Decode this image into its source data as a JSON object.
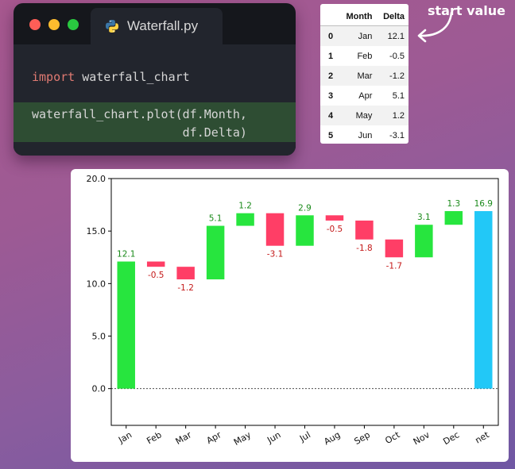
{
  "window": {
    "filename": "Waterfall.py",
    "dots": [
      {
        "name": "close",
        "color": "#fe5e57"
      },
      {
        "name": "minimize",
        "color": "#febc2e"
      },
      {
        "name": "maximize",
        "color": "#29c840"
      }
    ],
    "code": {
      "keyword": "import",
      "module": " waterfall_chart",
      "call_line1": "waterfall_chart.plot(df.Month,",
      "call_line2": "                     df.Delta)"
    }
  },
  "table": {
    "columns": [
      "",
      "Month",
      "Delta"
    ],
    "rows": [
      [
        "0",
        "Jan",
        "12.1"
      ],
      [
        "1",
        "Feb",
        "-0.5"
      ],
      [
        "2",
        "Mar",
        "-1.2"
      ],
      [
        "3",
        "Apr",
        "5.1"
      ],
      [
        "4",
        "May",
        "1.2"
      ],
      [
        "5",
        "Jun",
        "-3.1"
      ]
    ]
  },
  "annotation": "start value",
  "chart_data": {
    "type": "bar",
    "subtype": "waterfall",
    "categories": [
      "Jan",
      "Feb",
      "Mar",
      "Apr",
      "May",
      "Jun",
      "Jul",
      "Aug",
      "Sep",
      "Oct",
      "Nov",
      "Dec",
      "net"
    ],
    "values": [
      12.1,
      -0.5,
      -1.2,
      5.1,
      1.2,
      -3.1,
      2.9,
      -0.5,
      -1.8,
      -1.7,
      3.1,
      1.3,
      16.9
    ],
    "data_labels": [
      "12.1",
      "-0.5",
      "-1.2",
      "5.1",
      "1.2",
      "-3.1",
      "2.9",
      "-0.5",
      "-1.8",
      "-1.7",
      "3.1",
      "1.3",
      "16.9"
    ],
    "ylim": [
      -3.5,
      20.0
    ],
    "yticks": [
      0.0,
      5.0,
      10.0,
      15.0,
      20.0
    ],
    "ytick_labels": [
      "0.0",
      "5.0",
      "10.0",
      "15.0",
      "20.0"
    ],
    "zero_line": "dotted",
    "colors": {
      "positive": "#27e53e",
      "negative": "#ff3e66",
      "net": "#22c8f7",
      "positive_label": "#1a8a1a",
      "negative_label": "#c41818"
    },
    "xlabel": "",
    "ylabel": "",
    "title": ""
  }
}
